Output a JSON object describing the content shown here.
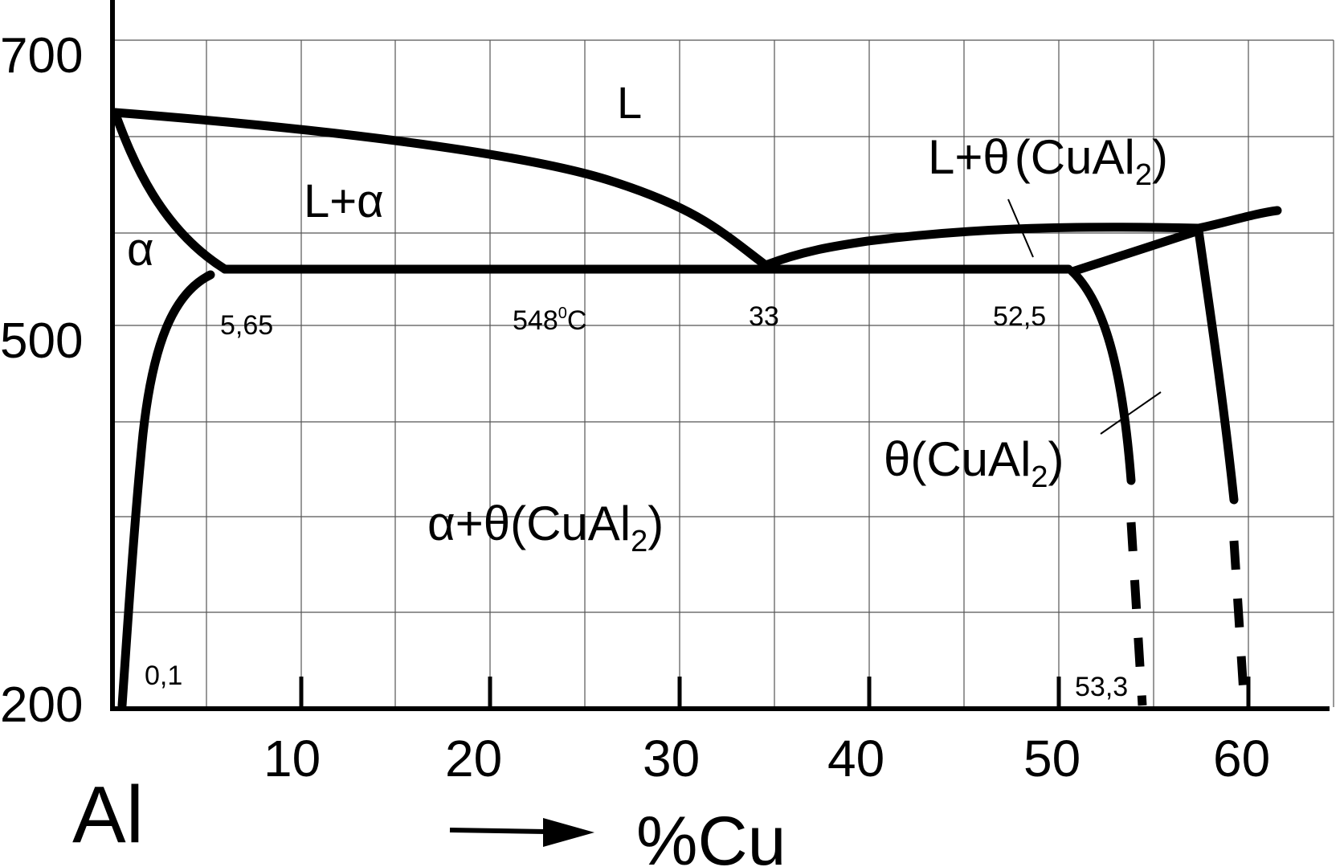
{
  "y_axis": {
    "ticks": [
      {
        "label": "700"
      },
      {
        "label": "500"
      },
      {
        "label": "200"
      }
    ]
  },
  "x_axis": {
    "ticks": [
      {
        "label": "10"
      },
      {
        "label": "20"
      },
      {
        "label": "30"
      },
      {
        "label": "40"
      },
      {
        "label": "50"
      },
      {
        "label": "60"
      }
    ],
    "origin_element": "Al",
    "title": "%Cu"
  },
  "phase_labels": {
    "liquid": "L",
    "l_alpha": "L+α",
    "alpha": "α",
    "l_theta_main": "L+θ",
    "l_theta_open": "(CuAl",
    "l_theta_sub": "2",
    "l_theta_close": ")",
    "theta_main": "θ(CuAl",
    "theta_sub": "2",
    "theta_close": ")",
    "alpha_theta_main": "α+θ(CuAl",
    "alpha_theta_sub": "2",
    "alpha_theta_close": ")"
  },
  "point_labels": {
    "p_565": "5,65",
    "p_548": "548",
    "p_548_sup": "0",
    "p_548_unit": "C",
    "p_33": "33",
    "p_525": "52,5",
    "p_01": "0,1",
    "p_533": "53,3"
  },
  "colors": {
    "line": "#000000",
    "grid": "#555555",
    "background": "#ffffff"
  }
}
